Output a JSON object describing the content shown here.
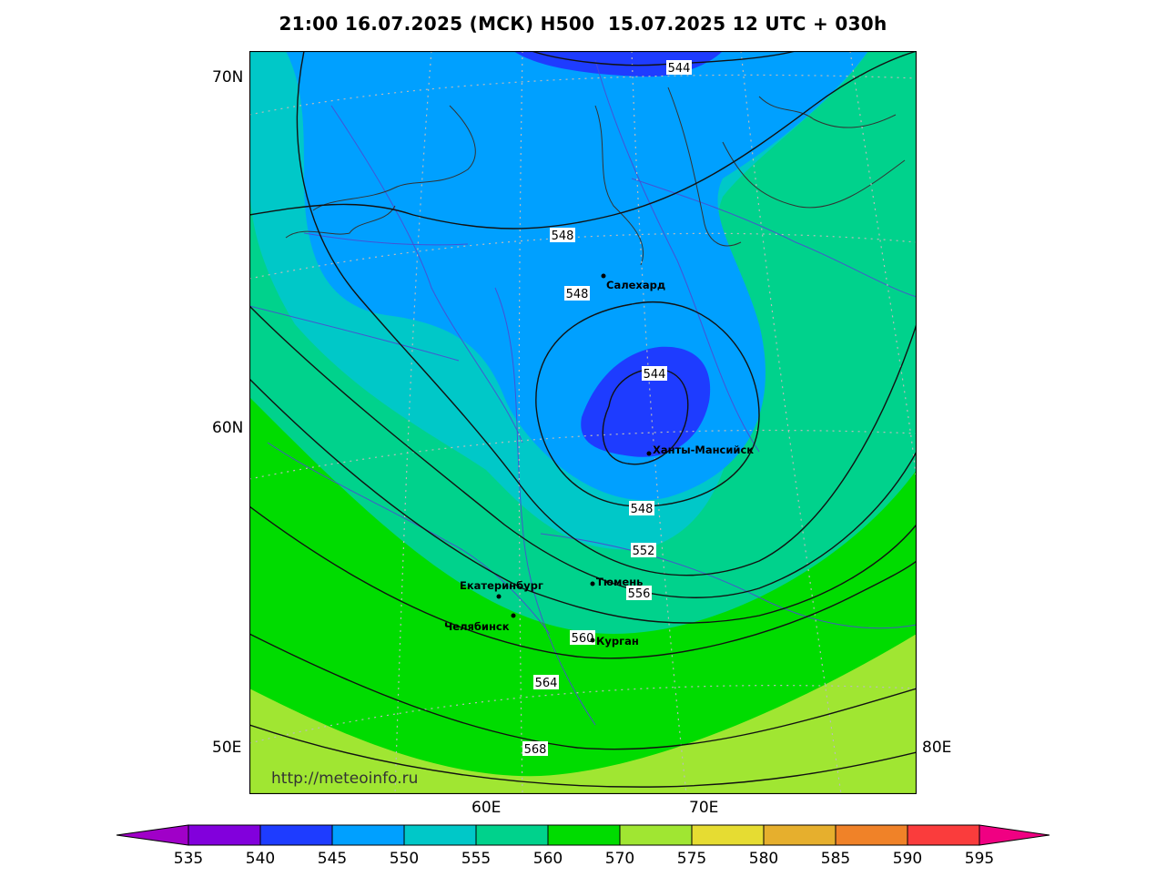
{
  "title": "21:00 16.07.2025 (МСК) H500  15.07.2025 12 UTC + 030h",
  "axes": {
    "lat_labels": [
      "70N",
      "60N",
      "50E"
    ],
    "lon_labels": [
      "60E",
      "70E",
      "80E"
    ]
  },
  "watermark": "http://meteoinfo.ru",
  "contour_labels": [
    "544",
    "548",
    "548",
    "544",
    "548",
    "552",
    "556",
    "560",
    "564",
    "568"
  ],
  "cities": [
    "Салехард",
    "Ханты-Мансийск",
    "Тюмень",
    "Екатеринбург",
    "Челябинск",
    "Курган"
  ],
  "colorbar": {
    "ticks": [
      "535",
      "540",
      "545",
      "550",
      "555",
      "560",
      "570",
      "575",
      "580",
      "585",
      "590",
      "595"
    ],
    "colors": {
      "lt535": "#a000c8",
      "c535_540": "#8200dc",
      "c540_545": "#1e3cff",
      "c545_550": "#00a0ff",
      "c550_555": "#00c8c8",
      "c555_560": "#00d28c",
      "c560_570": "#00dc00",
      "c570_575": "#a0e632",
      "c575_580": "#e6dc32",
      "c580_585": "#e6af2d",
      "c585_590": "#f08228",
      "c590_595": "#fa3c3c",
      "gt595": "#f00082"
    }
  }
}
